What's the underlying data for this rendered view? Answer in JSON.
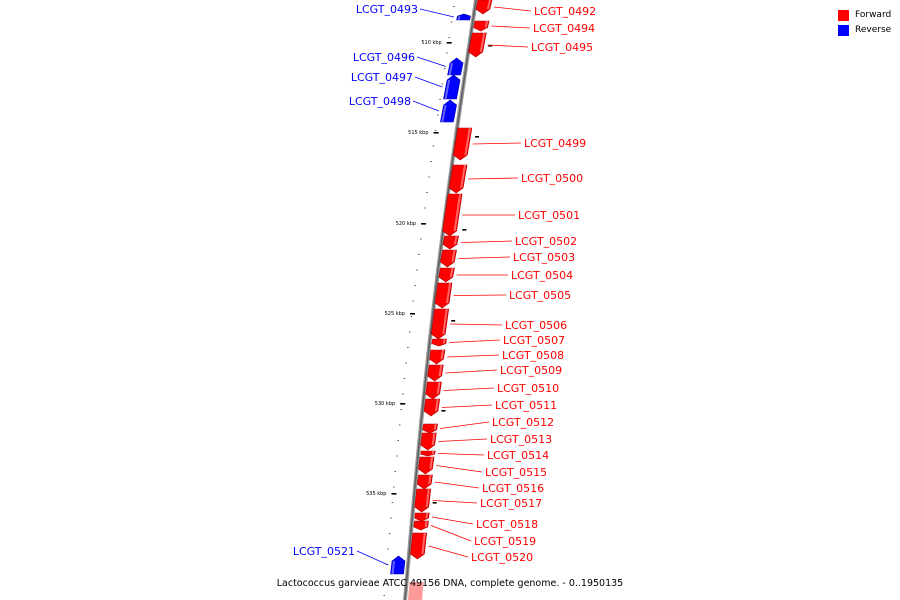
{
  "legend": {
    "forward_label": "Forward",
    "reverse_label": "Reverse",
    "forward_color": "#ff0000",
    "reverse_color": "#0000ff"
  },
  "caption": "Lactococcus garvieae ATCC 49156 DNA, complete genome. - 0..1950135",
  "ticks": [
    "510 kbp",
    "515 kbp",
    "520 kbp",
    "525 kbp",
    "530 kbp",
    "535 kbp"
  ],
  "genes": [
    {
      "id": "LCGT_0492",
      "strand": "forward"
    },
    {
      "id": "LCGT_0493",
      "strand": "reverse"
    },
    {
      "id": "LCGT_0494",
      "strand": "forward"
    },
    {
      "id": "LCGT_0495",
      "strand": "forward"
    },
    {
      "id": "LCGT_0496",
      "strand": "reverse"
    },
    {
      "id": "LCGT_0497",
      "strand": "reverse"
    },
    {
      "id": "LCGT_0498",
      "strand": "reverse"
    },
    {
      "id": "LCGT_0499",
      "strand": "forward"
    },
    {
      "id": "LCGT_0500",
      "strand": "forward"
    },
    {
      "id": "LCGT_0501",
      "strand": "forward"
    },
    {
      "id": "LCGT_0502",
      "strand": "forward"
    },
    {
      "id": "LCGT_0503",
      "strand": "forward"
    },
    {
      "id": "LCGT_0504",
      "strand": "forward"
    },
    {
      "id": "LCGT_0505",
      "strand": "forward"
    },
    {
      "id": "LCGT_0506",
      "strand": "forward"
    },
    {
      "id": "LCGT_0507",
      "strand": "forward"
    },
    {
      "id": "LCGT_0508",
      "strand": "forward"
    },
    {
      "id": "LCGT_0509",
      "strand": "forward"
    },
    {
      "id": "LCGT_0510",
      "strand": "forward"
    },
    {
      "id": "LCGT_0511",
      "strand": "forward"
    },
    {
      "id": "LCGT_0512",
      "strand": "forward"
    },
    {
      "id": "LCGT_0513",
      "strand": "forward"
    },
    {
      "id": "LCGT_0514",
      "strand": "forward"
    },
    {
      "id": "LCGT_0515",
      "strand": "forward"
    },
    {
      "id": "LCGT_0516",
      "strand": "forward"
    },
    {
      "id": "LCGT_0517",
      "strand": "forward"
    },
    {
      "id": "LCGT_0518",
      "strand": "forward"
    },
    {
      "id": "LCGT_0519",
      "strand": "forward"
    },
    {
      "id": "LCGT_0520",
      "strand": "forward"
    },
    {
      "id": "LCGT_0521",
      "strand": "reverse"
    }
  ]
}
